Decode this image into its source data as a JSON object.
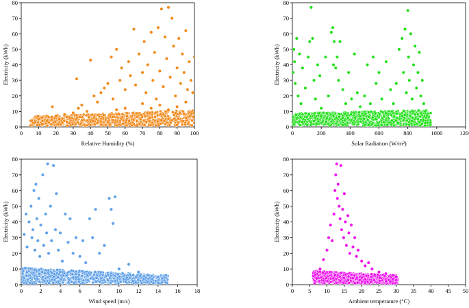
{
  "figure": {
    "panels_count": 4
  },
  "chart_data": [
    {
      "type": "scatter",
      "xlabel": "Relative Humidity (%)",
      "ylabel": "Electricity (kWh)",
      "xlim": [
        0,
        100
      ],
      "ylim": [
        0,
        80
      ],
      "xticks": [
        0,
        10,
        20,
        30,
        40,
        50,
        60,
        70,
        80,
        90,
        100
      ],
      "yticks": [
        0,
        10,
        20,
        30,
        40,
        50,
        60,
        70,
        80
      ],
      "color": "#f28a1c",
      "grid": false,
      "legend": "none",
      "points": [
        [
          6,
          4
        ],
        [
          8,
          3
        ],
        [
          10,
          5
        ],
        [
          12,
          6
        ],
        [
          15,
          4
        ],
        [
          18,
          13
        ],
        [
          20,
          7
        ],
        [
          22,
          5
        ],
        [
          25,
          8
        ],
        [
          28,
          6
        ],
        [
          30,
          9
        ],
        [
          32,
          31
        ],
        [
          33,
          12
        ],
        [
          35,
          14
        ],
        [
          38,
          10
        ],
        [
          40,
          43
        ],
        [
          42,
          20
        ],
        [
          44,
          16
        ],
        [
          46,
          22
        ],
        [
          48,
          25
        ],
        [
          50,
          28
        ],
        [
          52,
          45
        ],
        [
          53,
          18
        ],
        [
          55,
          50
        ],
        [
          57,
          30
        ],
        [
          58,
          38
        ],
        [
          60,
          24
        ],
        [
          62,
          42
        ],
        [
          63,
          33
        ],
        [
          65,
          63
        ],
        [
          66,
          27
        ],
        [
          68,
          47
        ],
        [
          70,
          35
        ],
        [
          71,
          55
        ],
        [
          72,
          22
        ],
        [
          73,
          40
        ],
        [
          75,
          61
        ],
        [
          76,
          30
        ],
        [
          77,
          48
        ],
        [
          78,
          18
        ],
        [
          79,
          64
        ],
        [
          80,
          36
        ],
        [
          81,
          76
        ],
        [
          82,
          26
        ],
        [
          83,
          58
        ],
        [
          84,
          44
        ],
        [
          85,
          77
        ],
        [
          86,
          32
        ],
        [
          87,
          70
        ],
        [
          88,
          52
        ],
        [
          89,
          20
        ],
        [
          90,
          38
        ],
        [
          91,
          57
        ],
        [
          92,
          28
        ],
        [
          93,
          47
        ],
        [
          94,
          35
        ],
        [
          95,
          62
        ],
        [
          96,
          24
        ],
        [
          97,
          42
        ],
        [
          98,
          30
        ],
        [
          99,
          22
        ],
        [
          100,
          45
        ],
        [
          70,
          15
        ],
        [
          75,
          12
        ],
        [
          80,
          14
        ],
        [
          85,
          11
        ],
        [
          90,
          13
        ],
        [
          95,
          16
        ],
        [
          60,
          12
        ],
        [
          55,
          11
        ]
      ],
      "dense_band": {
        "x": [
          5,
          100
        ],
        "y_max": [
          6,
          10
        ]
      }
    },
    {
      "type": "scatter",
      "xlabel": "Solar Radiation (W/m²)",
      "ylabel": "Electricity (kWh)",
      "xlim": [
        0,
        1200
      ],
      "ylim": [
        0,
        80
      ],
      "xticks": [
        0,
        200,
        400,
        600,
        800,
        1000,
        1200
      ],
      "yticks": [
        0,
        10,
        20,
        30,
        40,
        50,
        60,
        70,
        80
      ],
      "color": "#22e01a",
      "grid": false,
      "legend": "none",
      "points": [
        [
          5,
          35
        ],
        [
          10,
          50
        ],
        [
          15,
          42
        ],
        [
          20,
          28
        ],
        [
          30,
          57
        ],
        [
          40,
          20
        ],
        [
          50,
          47
        ],
        [
          60,
          15
        ],
        [
          70,
          38
        ],
        [
          90,
          25
        ],
        [
          110,
          45
        ],
        [
          120,
          55
        ],
        [
          130,
          77
        ],
        [
          140,
          57
        ],
        [
          150,
          30
        ],
        [
          160,
          18
        ],
        [
          175,
          40
        ],
        [
          190,
          33
        ],
        [
          200,
          12
        ],
        [
          230,
          45
        ],
        [
          250,
          20
        ],
        [
          270,
          61
        ],
        [
          280,
          64
        ],
        [
          285,
          40
        ],
        [
          290,
          55
        ],
        [
          300,
          38
        ],
        [
          310,
          45
        ],
        [
          320,
          30
        ],
        [
          330,
          55
        ],
        [
          350,
          24
        ],
        [
          370,
          15
        ],
        [
          390,
          35
        ],
        [
          410,
          18
        ],
        [
          430,
          47
        ],
        [
          450,
          22
        ],
        [
          470,
          13
        ],
        [
          500,
          20
        ],
        [
          520,
          40
        ],
        [
          540,
          15
        ],
        [
          560,
          45
        ],
        [
          580,
          28
        ],
        [
          600,
          35
        ],
        [
          620,
          18
        ],
        [
          650,
          42
        ],
        [
          680,
          24
        ],
        [
          700,
          15
        ],
        [
          720,
          28
        ],
        [
          740,
          50
        ],
        [
          760,
          57
        ],
        [
          770,
          35
        ],
        [
          780,
          63
        ],
        [
          790,
          22
        ],
        [
          800,
          75
        ],
        [
          805,
          45
        ],
        [
          810,
          30
        ],
        [
          820,
          60
        ],
        [
          830,
          18
        ],
        [
          840,
          40
        ],
        [
          850,
          52
        ],
        [
          860,
          25
        ],
        [
          870,
          35
        ],
        [
          880,
          48
        ],
        [
          890,
          20
        ],
        [
          900,
          30
        ],
        [
          910,
          15
        ],
        [
          920,
          10
        ]
      ],
      "dense_band": {
        "x": [
          0,
          960
        ],
        "y_max": [
          8,
          10
        ]
      }
    },
    {
      "type": "scatter",
      "xlabel": "Wind speed (m/s)",
      "ylabel": "Electricity (kWh)",
      "xlim": [
        0,
        18
      ],
      "ylim": [
        0,
        80
      ],
      "xticks": [
        0,
        2,
        4,
        6,
        8,
        10,
        12,
        14,
        16,
        18
      ],
      "yticks": [
        0,
        10,
        20,
        30,
        40,
        50,
        60,
        70,
        80
      ],
      "color": "#5fa0e8",
      "grid": false,
      "legend": "none",
      "points": [
        [
          0.3,
          32
        ],
        [
          0.5,
          45
        ],
        [
          0.6,
          24
        ],
        [
          0.8,
          40
        ],
        [
          1.0,
          50
        ],
        [
          1.1,
          30
        ],
        [
          1.2,
          35
        ],
        [
          1.3,
          60
        ],
        [
          1.4,
          22
        ],
        [
          1.5,
          64
        ],
        [
          1.6,
          42
        ],
        [
          1.7,
          28
        ],
        [
          1.8,
          55
        ],
        [
          1.9,
          18
        ],
        [
          2.0,
          38
        ],
        [
          2.2,
          70
        ],
        [
          2.3,
          25
        ],
        [
          2.5,
          45
        ],
        [
          2.6,
          33
        ],
        [
          2.7,
          77
        ],
        [
          2.8,
          20
        ],
        [
          3.0,
          50
        ],
        [
          3.1,
          28
        ],
        [
          3.3,
          76
        ],
        [
          3.5,
          35
        ],
        [
          3.6,
          58
        ],
        [
          3.8,
          22
        ],
        [
          4.0,
          33
        ],
        [
          4.2,
          15
        ],
        [
          4.5,
          45
        ],
        [
          4.8,
          27
        ],
        [
          5.0,
          42
        ],
        [
          5.3,
          20
        ],
        [
          5.6,
          30
        ],
        [
          6.0,
          18
        ],
        [
          6.3,
          28
        ],
        [
          6.6,
          14
        ],
        [
          7.0,
          42
        ],
        [
          7.3,
          30
        ],
        [
          7.6,
          48
        ],
        [
          8.0,
          20
        ],
        [
          8.5,
          25
        ],
        [
          9.0,
          55
        ],
        [
          9.2,
          48
        ],
        [
          9.4,
          39
        ],
        [
          9.6,
          56
        ],
        [
          10,
          10
        ],
        [
          11,
          13
        ],
        [
          12,
          8
        ],
        [
          13,
          6
        ],
        [
          14,
          5
        ],
        [
          14.8,
          6
        ]
      ],
      "dense_band": {
        "x": [
          0,
          15
        ],
        "y_max": [
          10,
          5
        ]
      }
    },
    {
      "type": "scatter",
      "xlabel": "Ambient temperature (°C)",
      "ylabel": "Electricity (kWh)",
      "xlim": [
        0,
        50
      ],
      "ylim": [
        0,
        80
      ],
      "xticks": [
        0,
        5,
        10,
        15,
        20,
        25,
        30,
        35,
        40,
        45,
        50
      ],
      "yticks": [
        0,
        10,
        20,
        30,
        40,
        50,
        60,
        70,
        80
      ],
      "color": "#ee12ee",
      "grid": false,
      "legend": "none",
      "points": [
        [
          7,
          4
        ],
        [
          8,
          10
        ],
        [
          9,
          16
        ],
        [
          10,
          22
        ],
        [
          10.5,
          30
        ],
        [
          11,
          38
        ],
        [
          11.5,
          28
        ],
        [
          12,
          45
        ],
        [
          12.3,
          60
        ],
        [
          12.5,
          70
        ],
        [
          12.8,
          77
        ],
        [
          13,
          55
        ],
        [
          13.2,
          64
        ],
        [
          13.5,
          50
        ],
        [
          13.8,
          42
        ],
        [
          14,
          76
        ],
        [
          14.2,
          35
        ],
        [
          14.5,
          48
        ],
        [
          14.8,
          30
        ],
        [
          15,
          58
        ],
        [
          15.3,
          40
        ],
        [
          15.6,
          25
        ],
        [
          16,
          44
        ],
        [
          16.3,
          33
        ],
        [
          16.6,
          20
        ],
        [
          17,
          38
        ],
        [
          17.5,
          24
        ],
        [
          18,
          30
        ],
        [
          18.5,
          18
        ],
        [
          19,
          22
        ],
        [
          20,
          15
        ],
        [
          21,
          12
        ],
        [
          22,
          14
        ],
        [
          23,
          10
        ],
        [
          25,
          8
        ],
        [
          27,
          7
        ],
        [
          29,
          6
        ],
        [
          30,
          5
        ]
      ],
      "dense_band": {
        "x": [
          6,
          30.5
        ],
        "y_max": [
          8,
          5
        ]
      }
    }
  ]
}
